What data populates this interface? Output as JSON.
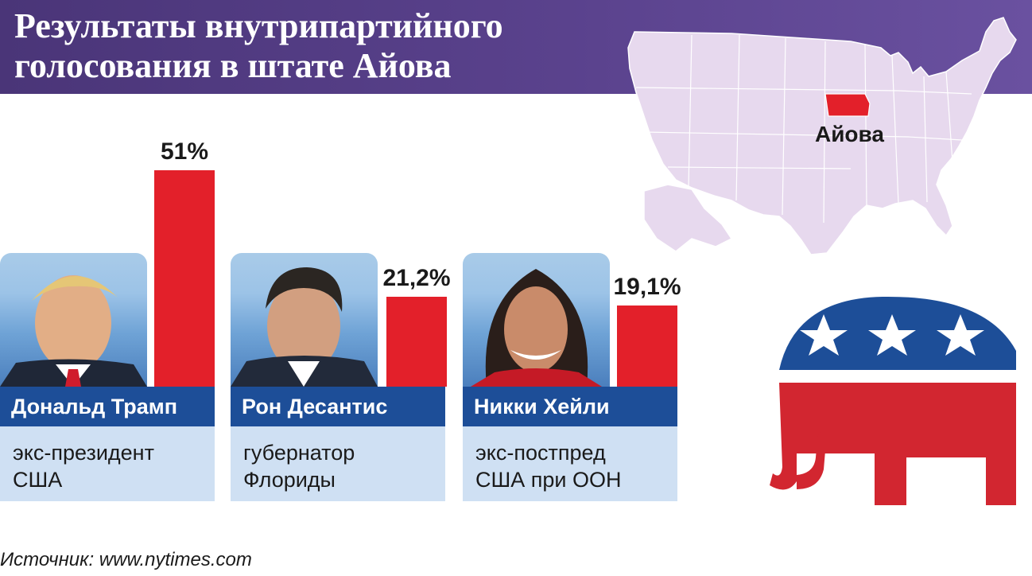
{
  "header": {
    "title_line1": "Результаты внутрипартийного",
    "title_line2": "голосования в штате Айова"
  },
  "map": {
    "state_label": "Айова",
    "us_color": "#e7d9ee",
    "highlight_color": "#e3202a"
  },
  "chart_data": {
    "type": "bar",
    "categories": [
      "Дональд Трамп",
      "Рон Десантис",
      "Никки Хейли"
    ],
    "values": [
      51,
      21.2,
      19.1
    ],
    "value_labels": [
      "51%",
      "21,2%",
      "19,1%"
    ],
    "unit": "%",
    "ylim": [
      0,
      51
    ]
  },
  "candidates": [
    {
      "name": "Дональд Трамп",
      "desc1": "экс-президент",
      "desc2": "США"
    },
    {
      "name": "Рон Десантис",
      "desc1": "губернатор",
      "desc2": "Флориды"
    },
    {
      "name": "Никки Хейли",
      "desc1": "экс-постпред",
      "desc2": "США при ООН"
    }
  ],
  "source": "Источник: www.nytimes.com",
  "colors": {
    "header": "#4a3578",
    "bar": "#e3202a",
    "name_band": "#1d4e98",
    "desc_band": "#cfe0f3",
    "logo_blue": "#1d4e98",
    "logo_red": "#d22630"
  }
}
